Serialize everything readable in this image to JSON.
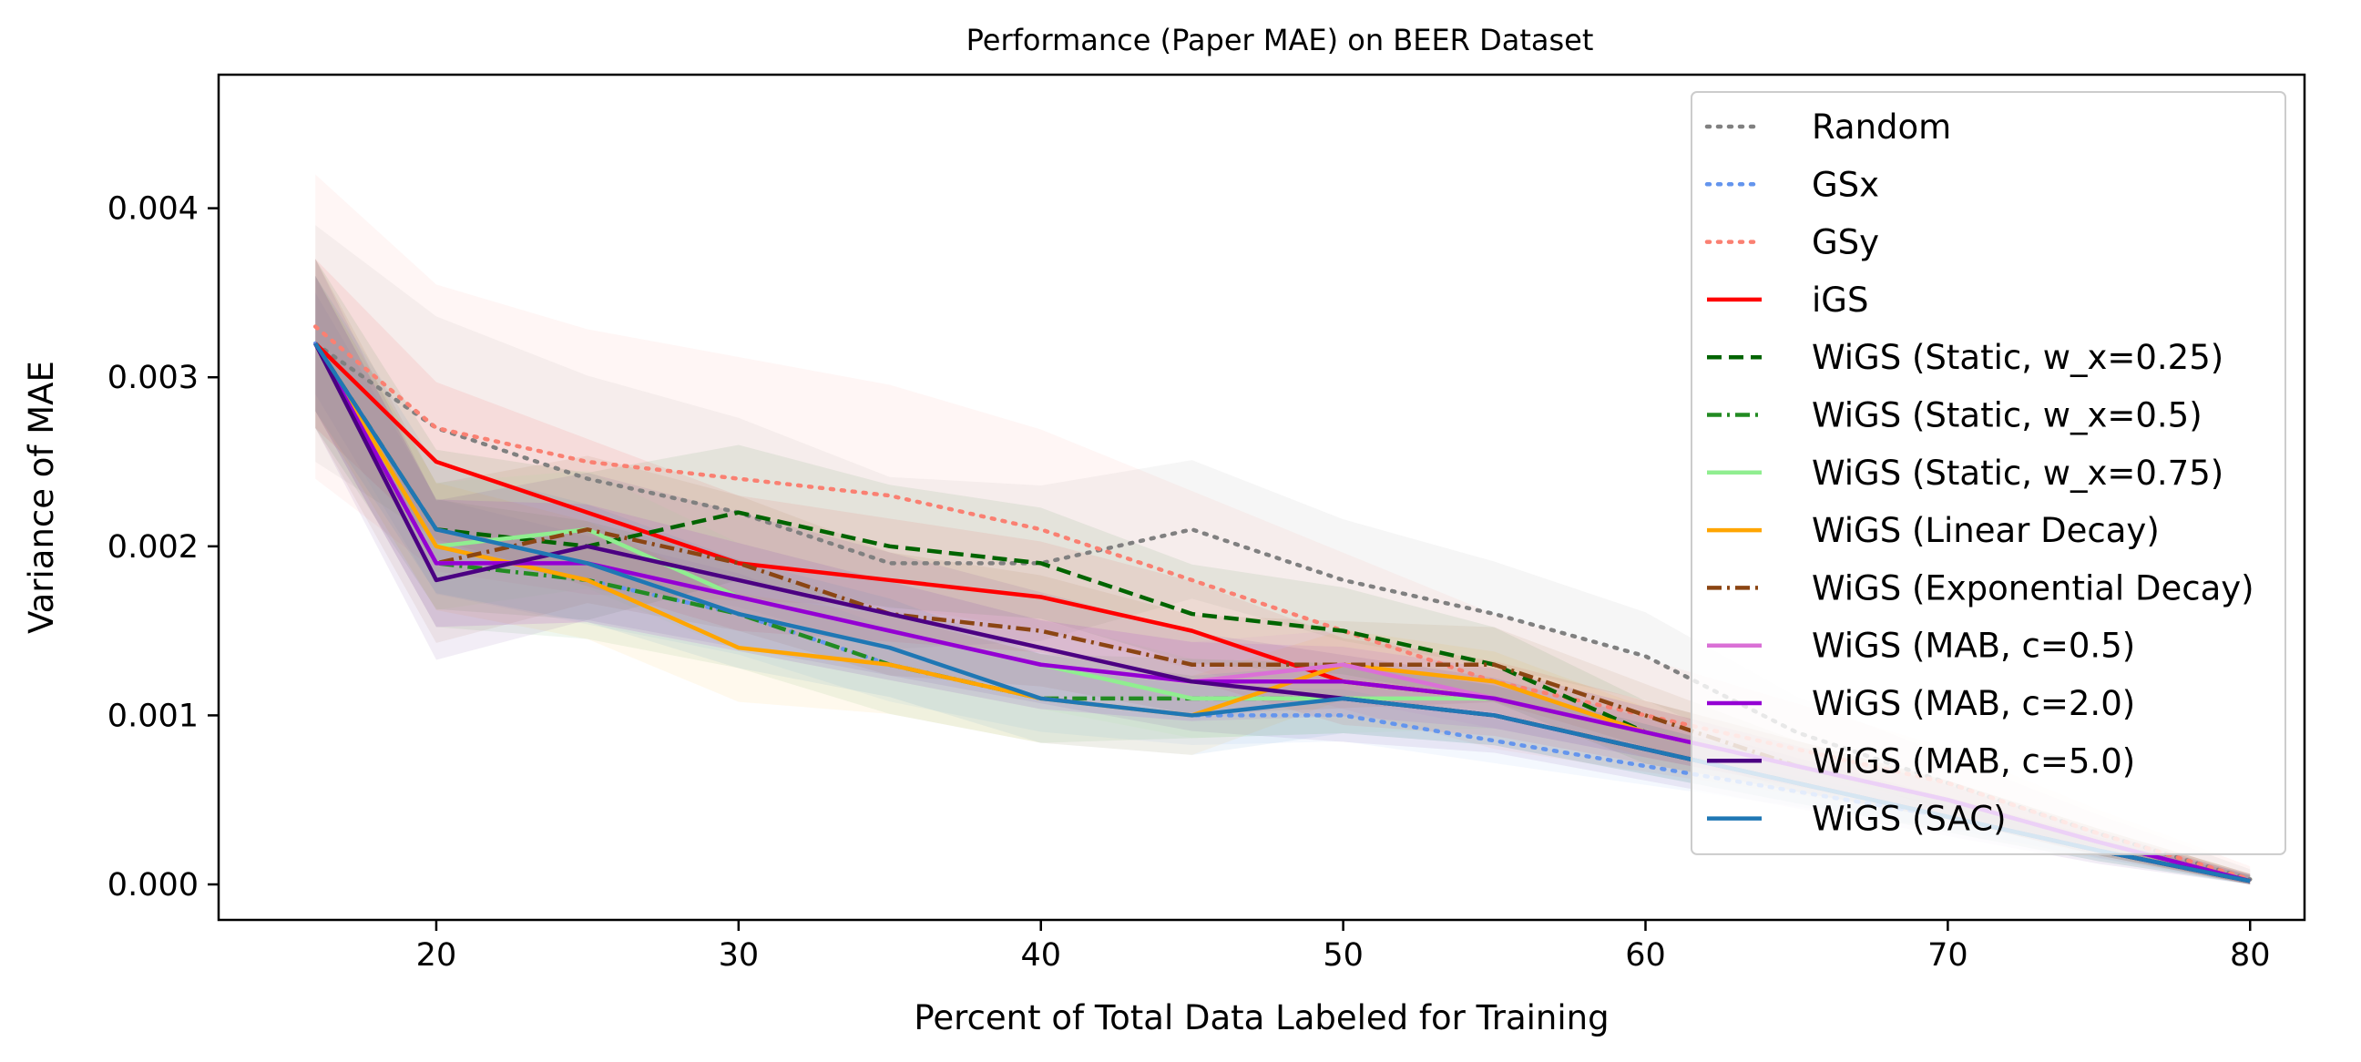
{
  "chart_data": {
    "type": "line",
    "title": "Performance (Paper MAE) on BEER Dataset",
    "xlabel": "Percent of Total Data Labeled for Training",
    "ylabel": "Variance of MAE",
    "xlim": [
      12.8,
      81.8
    ],
    "ylim": [
      -0.00021,
      0.00479
    ],
    "x_ticks": [
      20,
      30,
      40,
      50,
      60,
      70,
      80
    ],
    "x_tick_labels": [
      "20",
      "30",
      "40",
      "50",
      "60",
      "70",
      "80"
    ],
    "y_ticks": [
      0.0,
      0.001,
      0.002,
      0.003,
      0.004
    ],
    "y_tick_labels": [
      "0.000",
      "0.001",
      "0.002",
      "0.003",
      "0.004"
    ],
    "grid": false,
    "legend_position": "top-right",
    "x": [
      16,
      20,
      25,
      30,
      35,
      40,
      45,
      50,
      55,
      60,
      65,
      70,
      75,
      80
    ],
    "series": [
      {
        "name": "Random",
        "color": "#808080",
        "dash": "dotted",
        "values": [
          0.0032,
          0.0027,
          0.0024,
          0.0022,
          0.0019,
          0.0019,
          0.0021,
          0.0018,
          0.0016,
          0.00135,
          0.0009,
          0.0006,
          0.0003,
          3e-05
        ],
        "band": 0.0007
      },
      {
        "name": "GSx",
        "color": "#6495ed",
        "dash": "dotted",
        "values": [
          0.0032,
          0.002,
          0.0018,
          0.0016,
          0.0013,
          0.0011,
          0.001,
          0.001,
          0.00085,
          0.0007,
          0.00055,
          0.0004,
          0.0002,
          2e-05
        ],
        "band": 0.0003
      },
      {
        "name": "GSy",
        "color": "#fa8072",
        "dash": "dotted",
        "values": [
          0.0033,
          0.0027,
          0.0025,
          0.0024,
          0.0023,
          0.0021,
          0.0018,
          0.0015,
          0.0012,
          0.001,
          0.0008,
          0.0006,
          0.0003,
          3e-05
        ],
        "band": 0.0009
      },
      {
        "name": "iGS",
        "color": "#ff0000",
        "dash": "solid",
        "values": [
          0.0032,
          0.0025,
          0.0022,
          0.0019,
          0.0018,
          0.0017,
          0.0015,
          0.0012,
          0.0011,
          0.0009,
          0.0007,
          0.0005,
          0.00025,
          2e-05
        ],
        "band": 0.0005
      },
      {
        "name": "WiGS (Static, w_x=0.25)",
        "color": "#006400",
        "dash": "dashed",
        "values": [
          0.0032,
          0.0021,
          0.002,
          0.0022,
          0.002,
          0.0019,
          0.0016,
          0.0015,
          0.0013,
          0.0009,
          0.0007,
          0.0005,
          0.00025,
          2e-05
        ],
        "band": 0.0005
      },
      {
        "name": "WiGS (Static, w_x=0.5)",
        "color": "#228b22",
        "dash": "dashdot",
        "values": [
          0.0032,
          0.0019,
          0.0018,
          0.0016,
          0.0013,
          0.0011,
          0.0011,
          0.0011,
          0.001,
          0.0008,
          0.0006,
          0.0004,
          0.0002,
          2e-05
        ],
        "band": 0.0004
      },
      {
        "name": "WiGS (Static, w_x=0.75)",
        "color": "#90ee90",
        "dash": "solid",
        "values": [
          0.0032,
          0.002,
          0.0021,
          0.0017,
          0.0015,
          0.0013,
          0.0011,
          0.0011,
          0.0011,
          0.0009,
          0.0007,
          0.0005,
          0.00025,
          2e-05
        ],
        "band": 0.0004
      },
      {
        "name": "WiGS (Linear Decay)",
        "color": "#ffa500",
        "dash": "solid",
        "values": [
          0.0032,
          0.002,
          0.0018,
          0.0014,
          0.0013,
          0.0011,
          0.001,
          0.0013,
          0.0012,
          0.0009,
          0.0007,
          0.0005,
          0.00025,
          2e-05
        ],
        "band": 0.0004
      },
      {
        "name": "WiGS (Exponential Decay)",
        "color": "#8b4513",
        "dash": "dashdot",
        "values": [
          0.0032,
          0.0019,
          0.0021,
          0.0019,
          0.0016,
          0.0015,
          0.0013,
          0.0013,
          0.0013,
          0.001,
          0.0007,
          0.0005,
          0.00025,
          2e-05
        ],
        "band": 0.0005
      },
      {
        "name": "WiGS (MAB, c=0.5)",
        "color": "#da70d6",
        "dash": "solid",
        "values": [
          0.0032,
          0.0019,
          0.0019,
          0.0017,
          0.0015,
          0.0013,
          0.0012,
          0.0013,
          0.0011,
          0.0009,
          0.0007,
          0.0005,
          0.00025,
          2e-05
        ],
        "band": 0.0004
      },
      {
        "name": "WiGS (MAB, c=2.0)",
        "color": "#9400d3",
        "dash": "solid",
        "values": [
          0.0032,
          0.0019,
          0.0019,
          0.0017,
          0.0015,
          0.0013,
          0.0012,
          0.0012,
          0.0011,
          0.0009,
          0.0007,
          0.0005,
          0.00025,
          2e-05
        ],
        "band": 0.0004
      },
      {
        "name": "WiGS (MAB, c=5.0)",
        "color": "#4b0082",
        "dash": "solid",
        "values": [
          0.0032,
          0.0018,
          0.002,
          0.0018,
          0.0016,
          0.0014,
          0.0012,
          0.0011,
          0.001,
          0.0008,
          0.0006,
          0.0004,
          0.0002,
          2e-05
        ],
        "band": 0.0005
      },
      {
        "name": "WiGS (SAC)",
        "color": "#1f77b4",
        "dash": "solid",
        "values": [
          0.0032,
          0.0021,
          0.0019,
          0.0016,
          0.0014,
          0.0011,
          0.001,
          0.0011,
          0.001,
          0.0008,
          0.0006,
          0.0004,
          0.0002,
          2e-05
        ],
        "band": 0.0004
      }
    ]
  }
}
